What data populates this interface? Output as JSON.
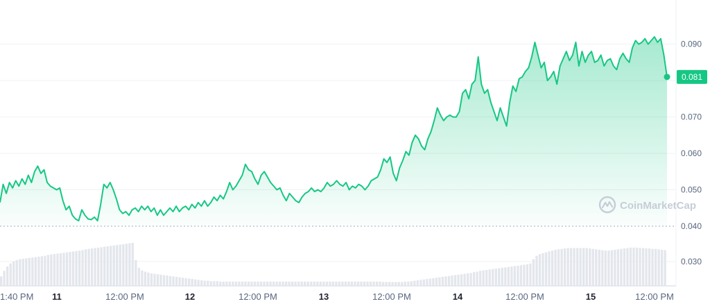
{
  "watermark": "CoinMarketCap",
  "colors": {
    "line": "#16c784",
    "area_top": "#16c784",
    "grid": "#eff2f5",
    "volume": "#e3e6ec",
    "text": "#58667e"
  },
  "chart_data": {
    "type": "area",
    "grid": true,
    "price_axis": {
      "ticks": [
        0.09,
        0.07,
        0.06,
        0.05,
        0.04
      ],
      "tick_labels": [
        "0.090",
        "0.070",
        "0.060",
        "0.050",
        "0.040"
      ],
      "ylim": [
        0.04,
        0.0945
      ],
      "position": "right"
    },
    "volume_axis": {
      "ticks": [
        0.03
      ],
      "tick_labels": [
        "0.030"
      ],
      "position": "right"
    },
    "x_labels": [
      "1:40 PM",
      "11",
      "12:00 PM",
      "12",
      "12:00 PM",
      "13",
      "12:00 PM",
      "14",
      "12:00 PM",
      "15",
      "12:00 PM"
    ],
    "x_label_bold": [
      false,
      true,
      false,
      true,
      false,
      true,
      false,
      true,
      false,
      true,
      false
    ],
    "last_price": 0.081,
    "last_price_label": "0.081",
    "price_series": [
      0.0465,
      0.0515,
      0.049,
      0.052,
      0.0505,
      0.0525,
      0.051,
      0.053,
      0.0515,
      0.054,
      0.052,
      0.055,
      0.0565,
      0.0545,
      0.0555,
      0.052,
      0.051,
      0.0505,
      0.05,
      0.0505,
      0.047,
      0.0445,
      0.0455,
      0.043,
      0.042,
      0.0415,
      0.0445,
      0.043,
      0.042,
      0.0418,
      0.0425,
      0.0415,
      0.046,
      0.0515,
      0.0505,
      0.052,
      0.05,
      0.0475,
      0.0445,
      0.0435,
      0.044,
      0.043,
      0.0445,
      0.045,
      0.044,
      0.0455,
      0.0445,
      0.0455,
      0.044,
      0.045,
      0.043,
      0.0445,
      0.043,
      0.044,
      0.045,
      0.044,
      0.0455,
      0.044,
      0.045,
      0.0455,
      0.0445,
      0.046,
      0.045,
      0.0465,
      0.0455,
      0.047,
      0.0455,
      0.0465,
      0.048,
      0.047,
      0.0485,
      0.0475,
      0.0495,
      0.052,
      0.05,
      0.051,
      0.0525,
      0.054,
      0.057,
      0.0555,
      0.055,
      0.053,
      0.0515,
      0.054,
      0.055,
      0.0535,
      0.052,
      0.051,
      0.05,
      0.0505,
      0.0485,
      0.047,
      0.049,
      0.048,
      0.047,
      0.0465,
      0.048,
      0.049,
      0.0495,
      0.0505,
      0.0495,
      0.05,
      0.0495,
      0.0505,
      0.052,
      0.051,
      0.0515,
      0.0525,
      0.0515,
      0.051,
      0.052,
      0.05,
      0.051,
      0.0505,
      0.0515,
      0.051,
      0.05,
      0.051,
      0.0525,
      0.053,
      0.0535,
      0.0555,
      0.0585,
      0.0575,
      0.059,
      0.0545,
      0.0525,
      0.056,
      0.058,
      0.0605,
      0.0595,
      0.063,
      0.065,
      0.064,
      0.062,
      0.061,
      0.064,
      0.066,
      0.069,
      0.0725,
      0.0705,
      0.069,
      0.07,
      0.0705,
      0.07,
      0.07,
      0.0715,
      0.0765,
      0.0775,
      0.075,
      0.079,
      0.08,
      0.0865,
      0.079,
      0.0765,
      0.0775,
      0.074,
      0.0715,
      0.069,
      0.0725,
      0.07,
      0.0675,
      0.074,
      0.0785,
      0.077,
      0.0805,
      0.081,
      0.0825,
      0.0835,
      0.0865,
      0.0905,
      0.087,
      0.0835,
      0.085,
      0.08,
      0.081,
      0.0825,
      0.079,
      0.084,
      0.086,
      0.088,
      0.0855,
      0.087,
      0.0905,
      0.084,
      0.088,
      0.085,
      0.087,
      0.088,
      0.085,
      0.0855,
      0.087,
      0.084,
      0.0855,
      0.086,
      0.084,
      0.083,
      0.086,
      0.0875,
      0.086,
      0.085,
      0.089,
      0.091,
      0.09,
      0.0905,
      0.0915,
      0.09,
      0.091,
      0.092,
      0.0905,
      0.0915,
      0.087,
      0.081
    ],
    "volume_series": [
      0.22,
      0.35,
      0.45,
      0.52,
      0.57,
      0.6,
      0.62,
      0.63,
      0.64,
      0.65,
      0.66,
      0.67,
      0.68,
      0.69,
      0.7,
      0.72,
      0.73,
      0.74,
      0.75,
      0.76,
      0.77,
      0.78,
      0.79,
      0.8,
      0.81,
      0.82,
      0.83,
      0.85,
      0.86,
      0.87,
      0.88,
      0.89,
      0.9,
      0.91,
      0.92,
      0.93,
      0.94,
      0.95,
      0.96,
      0.97,
      0.98,
      0.99,
      1.0,
      0.6,
      0.42,
      0.36,
      0.33,
      0.31,
      0.29,
      0.28,
      0.27,
      0.26,
      0.25,
      0.24,
      0.23,
      0.22,
      0.21,
      0.2,
      0.19,
      0.18,
      0.17,
      0.16,
      0.15,
      0.14,
      0.13,
      0.12,
      0.12,
      0.11,
      0.11,
      0.11,
      0.1,
      0.1,
      0.1,
      0.1,
      0.1,
      0.1,
      0.1,
      0.1,
      0.1,
      0.1,
      0.1,
      0.1,
      0.1,
      0.1,
      0.1,
      0.1,
      0.1,
      0.1,
      0.1,
      0.1,
      0.1,
      0.1,
      0.1,
      0.1,
      0.1,
      0.1,
      0.1,
      0.1,
      0.1,
      0.1,
      0.1,
      0.1,
      0.1,
      0.1,
      0.1,
      0.1,
      0.1,
      0.1,
      0.1,
      0.1,
      0.1,
      0.1,
      0.1,
      0.1,
      0.1,
      0.1,
      0.1,
      0.1,
      0.1,
      0.1,
      0.1,
      0.1,
      0.09,
      0.09,
      0.09,
      0.09,
      0.09,
      0.09,
      0.09,
      0.1,
      0.1,
      0.11,
      0.12,
      0.13,
      0.14,
      0.15,
      0.16,
      0.17,
      0.18,
      0.19,
      0.2,
      0.21,
      0.22,
      0.23,
      0.24,
      0.25,
      0.26,
      0.27,
      0.28,
      0.29,
      0.3,
      0.32,
      0.33,
      0.35,
      0.36,
      0.37,
      0.38,
      0.39,
      0.4,
      0.41,
      0.42,
      0.43,
      0.44,
      0.45,
      0.46,
      0.47,
      0.48,
      0.49,
      0.5,
      0.52,
      0.62,
      0.7,
      0.74,
      0.76,
      0.78,
      0.8,
      0.82,
      0.84,
      0.85,
      0.86,
      0.87,
      0.88,
      0.88,
      0.88,
      0.88,
      0.88,
      0.88,
      0.88,
      0.87,
      0.86,
      0.85,
      0.84,
      0.83,
      0.82,
      0.82,
      0.83,
      0.84,
      0.85,
      0.86,
      0.87,
      0.88,
      0.89,
      0.89,
      0.89,
      0.88,
      0.88,
      0.87,
      0.87,
      0.86,
      0.86,
      0.85,
      0.84,
      0.83
    ]
  }
}
